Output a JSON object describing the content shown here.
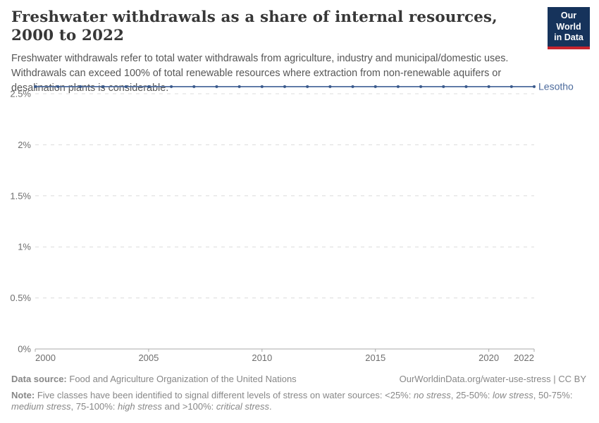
{
  "header": {
    "title": "Freshwater withdrawals as a share of internal resources, 2000 to 2022",
    "subtitle": "Freshwater withdrawals refer to total water withdrawals from agriculture, industry and municipal/domestic uses. Withdrawals can exceed 100% of total renewable resources where extraction from non-renewable aquifers or desalination plants is considerable."
  },
  "logo": {
    "line1": "Our World",
    "line2": "in Data",
    "bg_color": "#16335b",
    "bar_color": "#c7252e"
  },
  "chart_data": {
    "type": "line",
    "title": "Freshwater withdrawals as a share of internal resources, 2000 to 2022",
    "xlabel": "",
    "ylabel": "",
    "xlim": [
      2000,
      2022
    ],
    "ylim": [
      0,
      2.6
    ],
    "grid": "horizontal-dashed",
    "legend_position": "end-of-line-label",
    "x_ticks": [
      2000,
      2005,
      2010,
      2015,
      2020,
      2022
    ],
    "y_ticks": [
      {
        "value": 0,
        "label": "0%"
      },
      {
        "value": 0.5,
        "label": "0.5%"
      },
      {
        "value": 1,
        "label": "1%"
      },
      {
        "value": 1.5,
        "label": "1.5%"
      },
      {
        "value": 2,
        "label": "2%"
      },
      {
        "value": 2.5,
        "label": "2.5%"
      }
    ],
    "series": [
      {
        "name": "Lesotho",
        "color": "#4c6a9c",
        "marker_color": "#3a5a8c",
        "x": [
          2000,
          2001,
          2002,
          2003,
          2004,
          2005,
          2006,
          2007,
          2008,
          2009,
          2010,
          2011,
          2012,
          2013,
          2014,
          2015,
          2016,
          2017,
          2018,
          2019,
          2020,
          2021,
          2022
        ],
        "values": [
          2.57,
          2.57,
          2.57,
          2.57,
          2.57,
          2.57,
          2.57,
          2.57,
          2.57,
          2.57,
          2.57,
          2.57,
          2.57,
          2.57,
          2.57,
          2.57,
          2.57,
          2.57,
          2.57,
          2.57,
          2.57,
          2.57,
          2.57
        ]
      }
    ]
  },
  "footer": {
    "source_segments": [
      {
        "t": "Data source: ",
        "b": 1
      },
      {
        "t": "Food and Agriculture Organization of the United Nations"
      }
    ],
    "link": "OurWorldinData.org/water-use-stress | CC BY",
    "note_segments": [
      {
        "t": "Note:",
        "b": 1
      },
      {
        "t": " Five classes have been identified to signal different levels of stress on water sources: <25%: "
      },
      {
        "t": "no stress",
        "i": 1
      },
      {
        "t": ", 25-50%: "
      },
      {
        "t": "low stress",
        "i": 1
      },
      {
        "t": ", 50-75%: "
      },
      {
        "t": "medium stress",
        "i": 1
      },
      {
        "t": ", 75-100%: "
      },
      {
        "t": "high stress",
        "i": 1
      },
      {
        "t": " and >100%: "
      },
      {
        "t": "critical stress",
        "i": 1
      },
      {
        "t": "."
      }
    ]
  }
}
